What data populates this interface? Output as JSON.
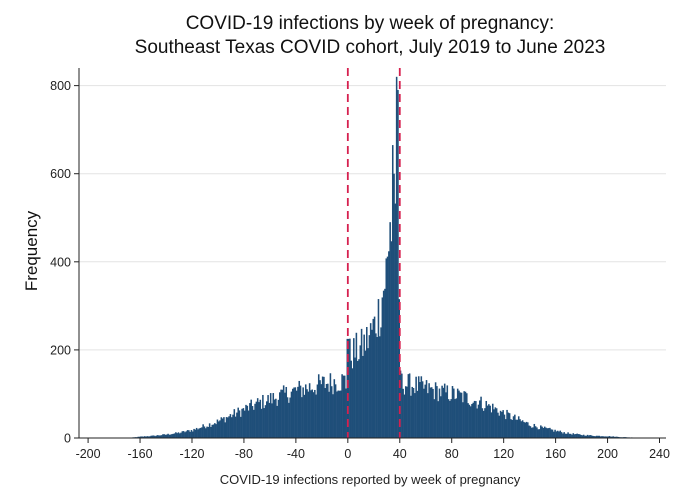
{
  "chart_data": {
    "type": "bar",
    "title": [
      "COVID-19 infections by week of pregnancy:",
      "Southeast Texas COVID cohort, July 2019 to June 2023"
    ],
    "xlabel": "COVID-19 infections reported by week of pregnancy",
    "ylabel": "Frequency",
    "xlim": [
      -207,
      245
    ],
    "ylim": [
      0,
      840
    ],
    "xticks": [
      -200,
      -160,
      -120,
      -80,
      -40,
      0,
      40,
      80,
      120,
      160,
      200,
      240
    ],
    "yticks": [
      0,
      200,
      400,
      600,
      800
    ],
    "grid": "horizontal",
    "bar_color": "#1f4e79",
    "reference_lines": [
      {
        "x": 0,
        "color": "#d6204f",
        "style": "dashed"
      },
      {
        "x": 40,
        "color": "#d6204f",
        "style": "dashed"
      }
    ],
    "bin_width": 1,
    "profile": [
      [
        -170,
        0
      ],
      [
        -160,
        3
      ],
      [
        -150,
        5
      ],
      [
        -140,
        8
      ],
      [
        -130,
        12
      ],
      [
        -120,
        18
      ],
      [
        -110,
        28
      ],
      [
        -100,
        38
      ],
      [
        -90,
        52
      ],
      [
        -80,
        65
      ],
      [
        -70,
        78
      ],
      [
        -60,
        88
      ],
      [
        -50,
        98
      ],
      [
        -40,
        108
      ],
      [
        -30,
        115
      ],
      [
        -20,
        122
      ],
      [
        -10,
        128
      ],
      [
        -3,
        130
      ],
      [
        -1,
        110
      ],
      [
        0,
        175
      ],
      [
        1,
        190
      ],
      [
        5,
        195
      ],
      [
        10,
        205
      ],
      [
        15,
        225
      ],
      [
        20,
        255
      ],
      [
        25,
        300
      ],
      [
        28,
        360
      ],
      [
        30,
        390
      ],
      [
        31,
        410
      ],
      [
        32,
        470
      ],
      [
        33,
        460
      ],
      [
        34,
        540
      ],
      [
        35,
        600
      ],
      [
        36,
        580
      ],
      [
        37,
        820
      ],
      [
        38,
        780
      ],
      [
        39,
        300
      ],
      [
        40,
        160
      ],
      [
        41,
        125
      ],
      [
        45,
        122
      ],
      [
        50,
        120
      ],
      [
        60,
        112
      ],
      [
        70,
        105
      ],
      [
        80,
        100
      ],
      [
        90,
        92
      ],
      [
        100,
        82
      ],
      [
        110,
        70
      ],
      [
        120,
        55
      ],
      [
        130,
        42
      ],
      [
        140,
        30
      ],
      [
        150,
        22
      ],
      [
        160,
        16
      ],
      [
        170,
        10
      ],
      [
        180,
        7
      ],
      [
        190,
        5
      ],
      [
        200,
        4
      ],
      [
        210,
        2
      ],
      [
        220,
        1
      ],
      [
        235,
        0
      ]
    ],
    "spikes": [
      {
        "x": -1,
        "value": 225
      },
      {
        "x": 0,
        "value": 225
      },
      {
        "x": 32,
        "value": 490
      },
      {
        "x": 34,
        "value": 665
      },
      {
        "x": 35,
        "value": 600
      },
      {
        "x": 37,
        "value": 820
      },
      {
        "x": 38,
        "value": 790
      }
    ]
  }
}
